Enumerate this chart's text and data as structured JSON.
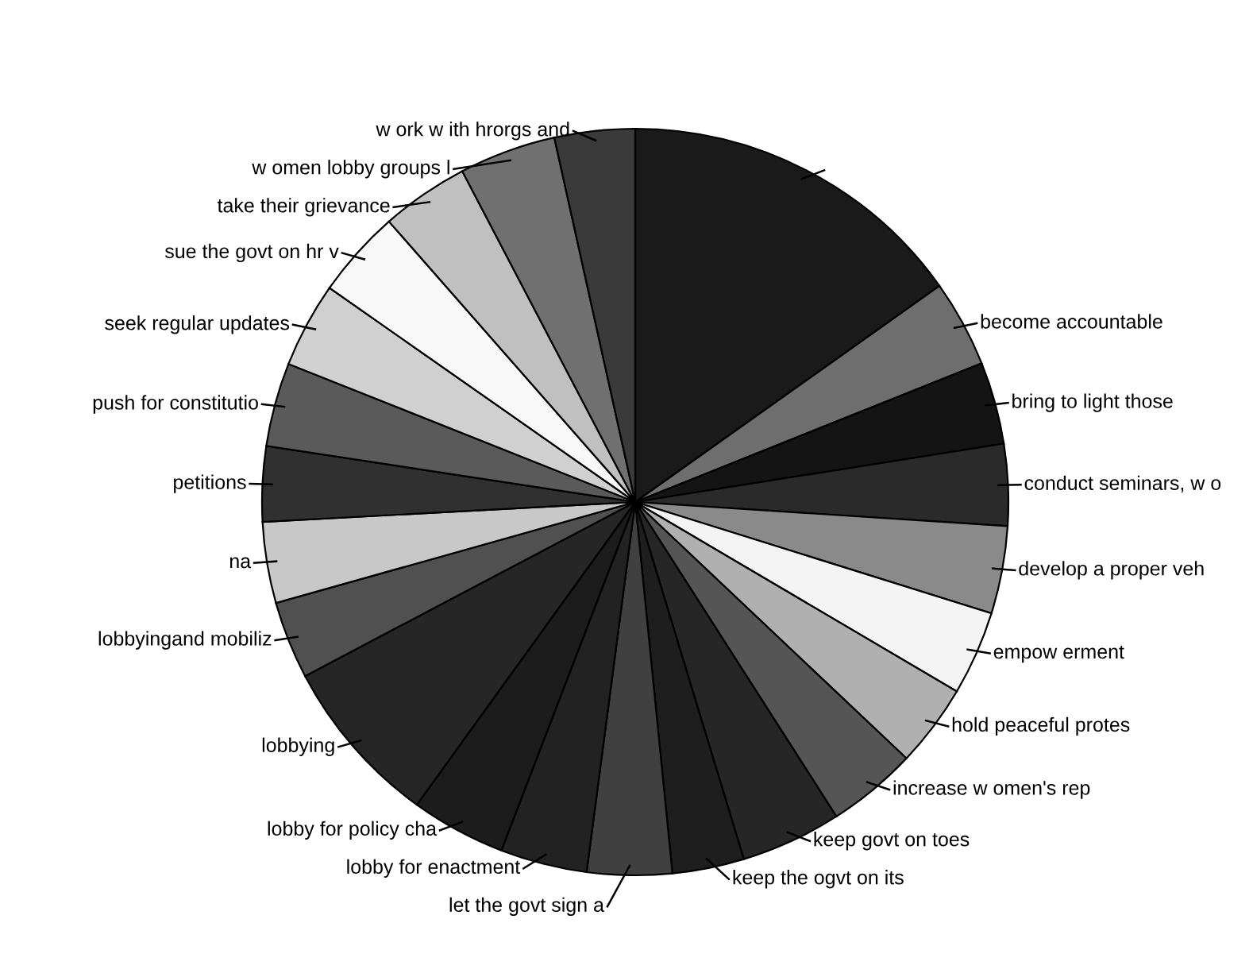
{
  "chart_data": {
    "type": "pie",
    "categories": [
      null,
      "become accountable",
      "bring to light those",
      "conduct seminars, w o",
      "develop a proper veh",
      "empow erment",
      "hold peaceful protes",
      "increase w omen's rep",
      "keep govt on toes",
      "keep the ogvt on its",
      "let the govt sign a",
      "lobby for enactment",
      "lobby for policy cha",
      "lobbying",
      "lobbyingand mobiliz",
      "na",
      "petitions",
      "push for constitutio",
      "seek regular updates",
      "sue the govt on hr v",
      "take their grievance",
      "w omen lobby groups l",
      "w ork w ith hrorgs and"
    ],
    "values": [
      15.17,
      3.77,
      3.56,
      3.53,
      3.79,
      3.65,
      3.58,
      3.89,
      4.36,
      3.11,
      3.67,
      3.76,
      4.11,
      7.33,
      3.36,
      3.51,
      3.25,
      3.63,
      3.69,
      3.81,
      3.8,
      4.19,
      3.48
    ],
    "colors": [
      "#1a1a1a",
      "#6e6e6e",
      "#141414",
      "#2a2a2a",
      "#8a8a8a",
      "#f4f4f4",
      "#b0b0b0",
      "#555555",
      "#262626",
      "#1e1e1e",
      "#404040",
      "#222222",
      "#1c1c1c",
      "#262626",
      "#505050",
      "#c8c8c8",
      "#303030",
      "#5a5a5a",
      "#d0d0d0",
      "#f8f8f8",
      "#c0c0c0",
      "#707070",
      "#3a3a3a"
    ],
    "legend": false
  }
}
